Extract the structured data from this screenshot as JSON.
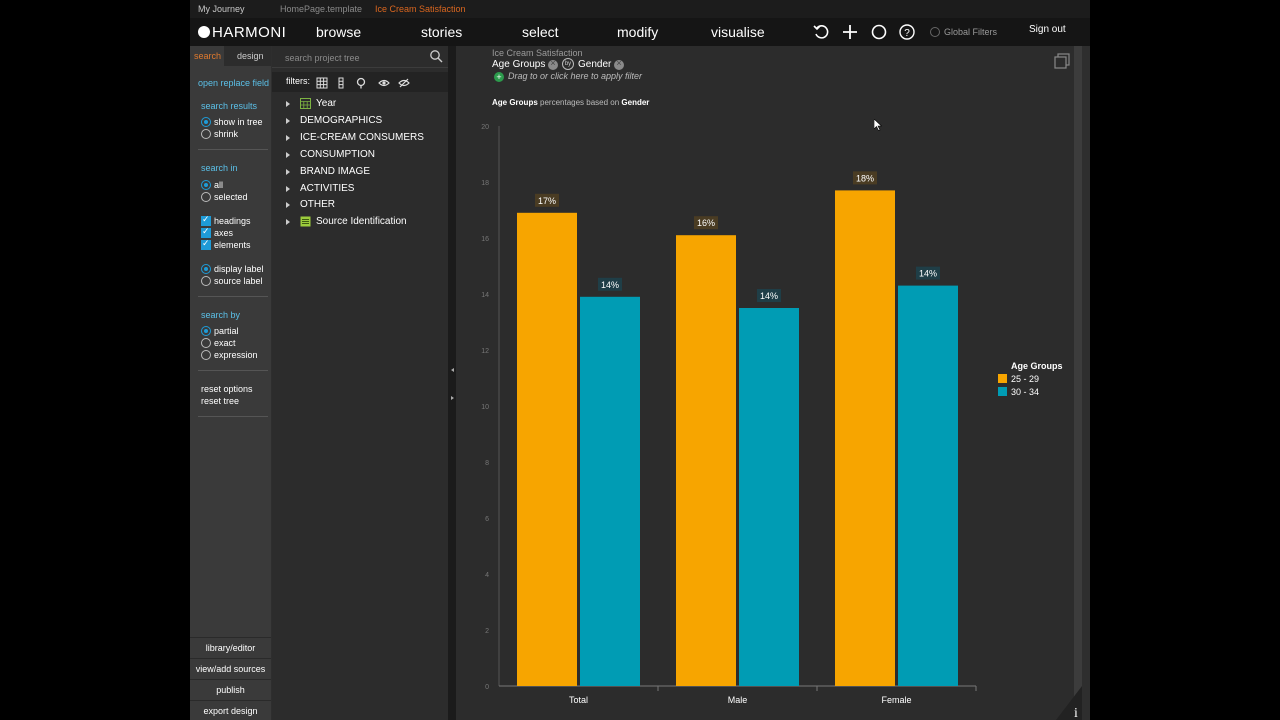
{
  "breadcrumbs": [
    "My Journey",
    "HomePage.template",
    "Ice Cream Satisfaction"
  ],
  "brand": "HARMONI",
  "nav": [
    "browse",
    "stories",
    "select",
    "modify",
    "visualise"
  ],
  "global_filters": "Global Filters",
  "sign_out": "Sign out",
  "options": {
    "tab_search": "search",
    "tab_design": "design",
    "open_replace": "open replace field",
    "search_results": {
      "heading": "search results",
      "items": [
        "show in tree",
        "shrink"
      ],
      "selected": 0
    },
    "search_in": {
      "heading": "search in",
      "items": [
        "all",
        "selected"
      ],
      "selected": 0
    },
    "checks": [
      "headings",
      "axes",
      "elements"
    ],
    "labels": {
      "items": [
        "display label",
        "source label"
      ],
      "selected": 0
    },
    "search_by": {
      "heading": "search by",
      "items": [
        "partial",
        "exact",
        "expression"
      ],
      "selected": 0
    },
    "reset_options": "reset options",
    "reset_tree": "reset tree",
    "bottom": [
      "library/editor",
      "view/add sources",
      "publish",
      "export design"
    ]
  },
  "tree": {
    "search_placeholder": "search project tree",
    "filters_label": "filters:",
    "nodes": [
      "Year",
      "DEMOGRAPHICS",
      "ICE-CREAM CONSUMERS",
      "CONSUMPTION",
      "BRAND IMAGE",
      "ACTIVITIES",
      "OTHER",
      "Source Identification"
    ]
  },
  "panel": {
    "table_name": "Ice Cream Satisfaction",
    "row_var": "Age Groups",
    "col_var": "Gender",
    "by_label": "by",
    "hint": "Drag to or click here to apply filter",
    "subtitle_pre": "Age Groups",
    "subtitle_mid": " percentages based on ",
    "subtitle_post": "Gender",
    "info_label": "i"
  },
  "colors": {
    "series1": "#f7a500",
    "series2": "#009cb4",
    "accent": "#5bc0e8",
    "orange": "#e07a2e"
  },
  "chart_data": {
    "type": "bar",
    "title": "",
    "categories": [
      "Total",
      "Male",
      "Female"
    ],
    "series": [
      {
        "name": "25 - 29",
        "values": [
          16.9,
          16.1,
          17.7
        ],
        "labels": [
          "17%",
          "16%",
          "18%"
        ]
      },
      {
        "name": "30 - 34",
        "values": [
          13.9,
          13.5,
          14.3
        ],
        "labels": [
          "14%",
          "14%",
          "14%"
        ]
      }
    ],
    "ylim": [
      0,
      20
    ],
    "yticks": [
      0,
      2,
      4,
      6,
      8,
      10,
      12,
      14,
      16,
      18,
      20
    ],
    "legend_title": "Age Groups",
    "legend_position": "right",
    "grid": false
  }
}
